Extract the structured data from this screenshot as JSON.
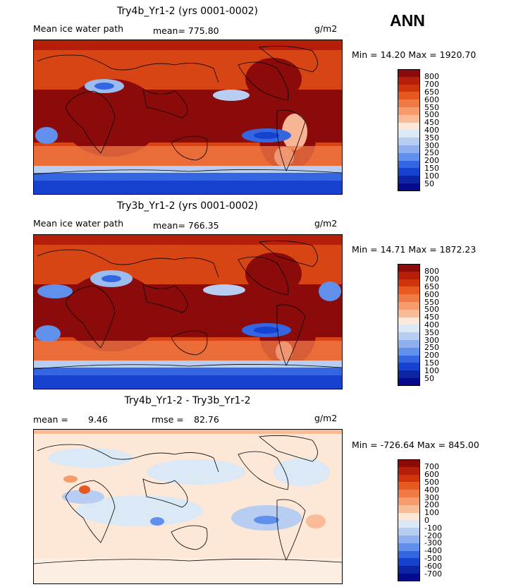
{
  "season": "ANN",
  "units": "g/m2",
  "panels": [
    {
      "title": "Try4b_Yr1-2 (yrs 0001-0002)",
      "subtitle": "Mean ice water path",
      "stat": "mean=  775.80",
      "range": "Min =  14.20 Max = 1920.70",
      "legend": {
        "labels": [
          "800",
          "700",
          "650",
          "600",
          "550",
          "500",
          "450",
          "400",
          "350",
          "300",
          "250",
          "200",
          "150",
          "100",
          "50"
        ],
        "colors": [
          "#8b0a0a",
          "#b51e08",
          "#d0340d",
          "#e65a22",
          "#f07a45",
          "#f59b6e",
          "#f8bc98",
          "#fde7d7",
          "#dbe8f6",
          "#b7cdf2",
          "#8fb0ee",
          "#6190ec",
          "#3566e2",
          "#1741cf",
          "#0c26a3",
          "#060a8c"
        ]
      }
    },
    {
      "title": "Try3b_Yr1-2 (yrs 0001-0002)",
      "subtitle": "Mean ice water path",
      "stat": "mean=  766.35",
      "range": "Min =  14.71 Max = 1872.23",
      "legend": {
        "labels": [
          "800",
          "700",
          "650",
          "600",
          "550",
          "500",
          "450",
          "400",
          "350",
          "300",
          "250",
          "200",
          "150",
          "100",
          "50"
        ],
        "colors": [
          "#8b0a0a",
          "#b51e08",
          "#d0340d",
          "#e65a22",
          "#f07a45",
          "#f59b6e",
          "#f8bc98",
          "#fde7d7",
          "#dbe8f6",
          "#b7cdf2",
          "#8fb0ee",
          "#6190ec",
          "#3566e2",
          "#1741cf",
          "#0c26a3",
          "#060a8c"
        ]
      }
    },
    {
      "title": "Try4b_Yr1-2 - Try3b_Yr1-2",
      "mean_label": "mean =",
      "mean_value": "9.46",
      "rmse_label": "rmse =",
      "rmse_value": "82.76",
      "range": "Min = -726.64 Max = 845.00",
      "legend": {
        "labels": [
          "700",
          "600",
          "500",
          "400",
          "300",
          "200",
          "100",
          "0",
          "-100",
          "-200",
          "-300",
          "-400",
          "-500",
          "-600",
          "-700"
        ],
        "colors": [
          "#8b0a0a",
          "#b51e08",
          "#d0340d",
          "#e65a22",
          "#f07a45",
          "#f59b6e",
          "#f8bc98",
          "#fde7d7",
          "#dbe8f6",
          "#b7cdf2",
          "#8fb0ee",
          "#6190ec",
          "#3566e2",
          "#1741cf",
          "#0c26a3",
          "#060a8c"
        ]
      }
    }
  ]
}
